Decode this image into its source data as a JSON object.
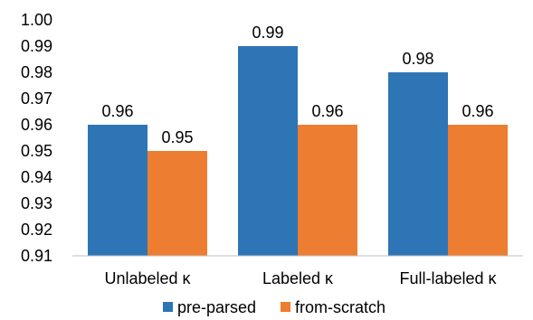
{
  "chart_data": {
    "type": "bar",
    "categories": [
      "Unlabeled κ",
      "Labeled κ",
      "Full-labeled κ"
    ],
    "series": [
      {
        "name": "pre-parsed",
        "values": [
          0.96,
          0.99,
          0.98
        ],
        "color": "#2E75B6"
      },
      {
        "name": "from-scratch",
        "values": [
          0.95,
          0.96,
          0.96
        ],
        "color": "#ED7D31"
      }
    ],
    "data_labels": [
      [
        "0.96",
        "0.99",
        "0.98"
      ],
      [
        "0.95",
        "0.96",
        "0.96"
      ]
    ],
    "ylim": [
      0.91,
      1.0
    ],
    "yticks": [
      "0.91",
      "0.92",
      "0.93",
      "0.94",
      "0.95",
      "0.96",
      "0.97",
      "0.98",
      "0.99",
      "1.00"
    ],
    "title": "",
    "xlabel": "",
    "ylabel": "",
    "grid": false,
    "legend_position": "bottom"
  }
}
